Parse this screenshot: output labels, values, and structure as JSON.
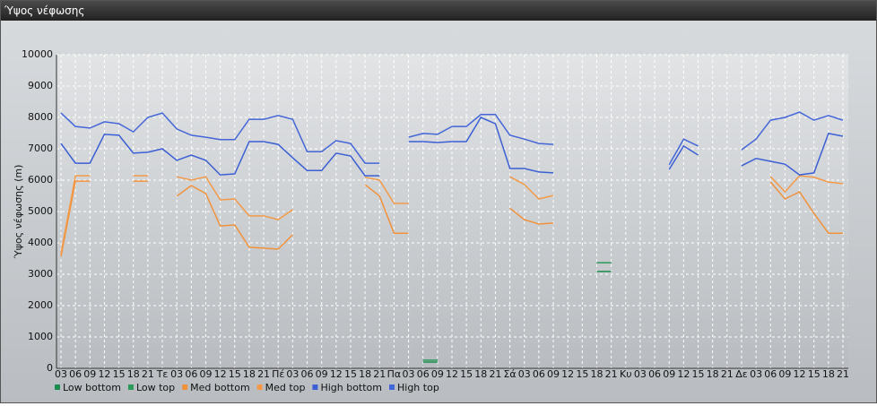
{
  "chart_data": {
    "type": "line",
    "title": "Ύψος νέφωσης",
    "y_label": "Ύψος νέφωσης (m)",
    "categories": [
      "03",
      "06",
      "09",
      "12",
      "15",
      "18",
      "21",
      "Τε",
      "03",
      "06",
      "09",
      "12",
      "15",
      "18",
      "21",
      "Πέ",
      "03",
      "06",
      "09",
      "12",
      "15",
      "18",
      "21",
      "Πα",
      "03",
      "06",
      "09",
      "12",
      "15",
      "18",
      "21",
      "Σά",
      "03",
      "06",
      "09",
      "12",
      "15",
      "18",
      "21",
      "Κυ",
      "03",
      "06",
      "09",
      "12",
      "15",
      "18",
      "21",
      "Δε",
      "03",
      "06",
      "09",
      "12",
      "15",
      "18",
      "21"
    ],
    "ylim": [
      0,
      10000
    ],
    "yticks": [
      0,
      1000,
      2000,
      3000,
      4000,
      5000,
      6000,
      7000,
      8000,
      9000,
      10000
    ],
    "grid": true,
    "series": [
      {
        "name": "Low bottom",
        "color": "#1e8c4e",
        "values": [
          null,
          null,
          null,
          null,
          null,
          null,
          null,
          null,
          null,
          null,
          null,
          null,
          null,
          null,
          null,
          null,
          null,
          null,
          null,
          null,
          null,
          null,
          null,
          null,
          null,
          200,
          200,
          null,
          null,
          null,
          null,
          null,
          null,
          null,
          null,
          null,
          null,
          3090,
          3090,
          null,
          null,
          null,
          null,
          null,
          null,
          null,
          null,
          null,
          null,
          null,
          null,
          null,
          null,
          null,
          null
        ]
      },
      {
        "name": "Low top",
        "color": "#2a9a5a",
        "values": [
          null,
          null,
          null,
          null,
          null,
          null,
          null,
          null,
          null,
          null,
          null,
          null,
          null,
          null,
          null,
          null,
          null,
          null,
          null,
          null,
          null,
          null,
          null,
          null,
          null,
          260,
          260,
          null,
          null,
          null,
          null,
          null,
          null,
          null,
          null,
          null,
          null,
          3370,
          3370,
          null,
          null,
          null,
          null,
          null,
          null,
          null,
          null,
          null,
          null,
          null,
          null,
          null,
          null,
          null,
          null
        ]
      },
      {
        "name": "Med bottom",
        "color": "#f0923c",
        "values": [
          3570,
          5970,
          5970,
          null,
          null,
          5970,
          5970,
          null,
          5490,
          5830,
          5570,
          4540,
          4570,
          3860,
          3830,
          3800,
          4260,
          null,
          null,
          null,
          null,
          5860,
          5490,
          4310,
          4310,
          null,
          null,
          null,
          null,
          null,
          null,
          5110,
          4740,
          4600,
          4630,
          null,
          null,
          null,
          null,
          null,
          null,
          null,
          null,
          null,
          null,
          null,
          null,
          null,
          null,
          5940,
          5400,
          5630,
          4940,
          4310,
          4310
        ]
      },
      {
        "name": "Med top",
        "color": "#f39a48",
        "values": [
          3660,
          6140,
          6140,
          null,
          null,
          6140,
          6140,
          null,
          6110,
          6000,
          6110,
          5370,
          5400,
          4860,
          4860,
          4740,
          5060,
          null,
          null,
          null,
          null,
          6090,
          6000,
          5260,
          5260,
          null,
          null,
          null,
          null,
          null,
          null,
          6110,
          5860,
          5400,
          5510,
          null,
          null,
          null,
          null,
          null,
          null,
          null,
          null,
          null,
          null,
          null,
          null,
          null,
          null,
          6110,
          5630,
          6140,
          6090,
          5940,
          5890
        ]
      },
      {
        "name": "High bottom",
        "color": "#3b5fd4",
        "values": [
          7170,
          6540,
          6540,
          7460,
          7430,
          6860,
          6890,
          7000,
          6630,
          6800,
          6630,
          6170,
          6200,
          7230,
          7230,
          7140,
          6710,
          6310,
          6310,
          6860,
          6770,
          6140,
          6140,
          null,
          7230,
          7230,
          7200,
          7230,
          7230,
          8000,
          7800,
          6370,
          6370,
          6260,
          6230,
          null,
          null,
          null,
          null,
          null,
          null,
          null,
          6340,
          7090,
          6800,
          null,
          null,
          6460,
          6690,
          6600,
          6510,
          6170,
          6230,
          7490,
          7400
        ]
      },
      {
        "name": "High top",
        "color": "#4466d8",
        "values": [
          8140,
          7710,
          7660,
          7860,
          7800,
          7540,
          8000,
          8140,
          7630,
          7430,
          7370,
          7290,
          7290,
          7940,
          7940,
          8060,
          7940,
          6910,
          6910,
          7260,
          7170,
          6540,
          6540,
          null,
          7370,
          7490,
          7460,
          7710,
          7710,
          8090,
          8090,
          7430,
          7310,
          7170,
          7140,
          null,
          null,
          null,
          null,
          null,
          null,
          null,
          6490,
          7310,
          7090,
          null,
          null,
          6970,
          7310,
          7910,
          8000,
          8170,
          7910,
          8060,
          7910
        ]
      }
    ]
  }
}
